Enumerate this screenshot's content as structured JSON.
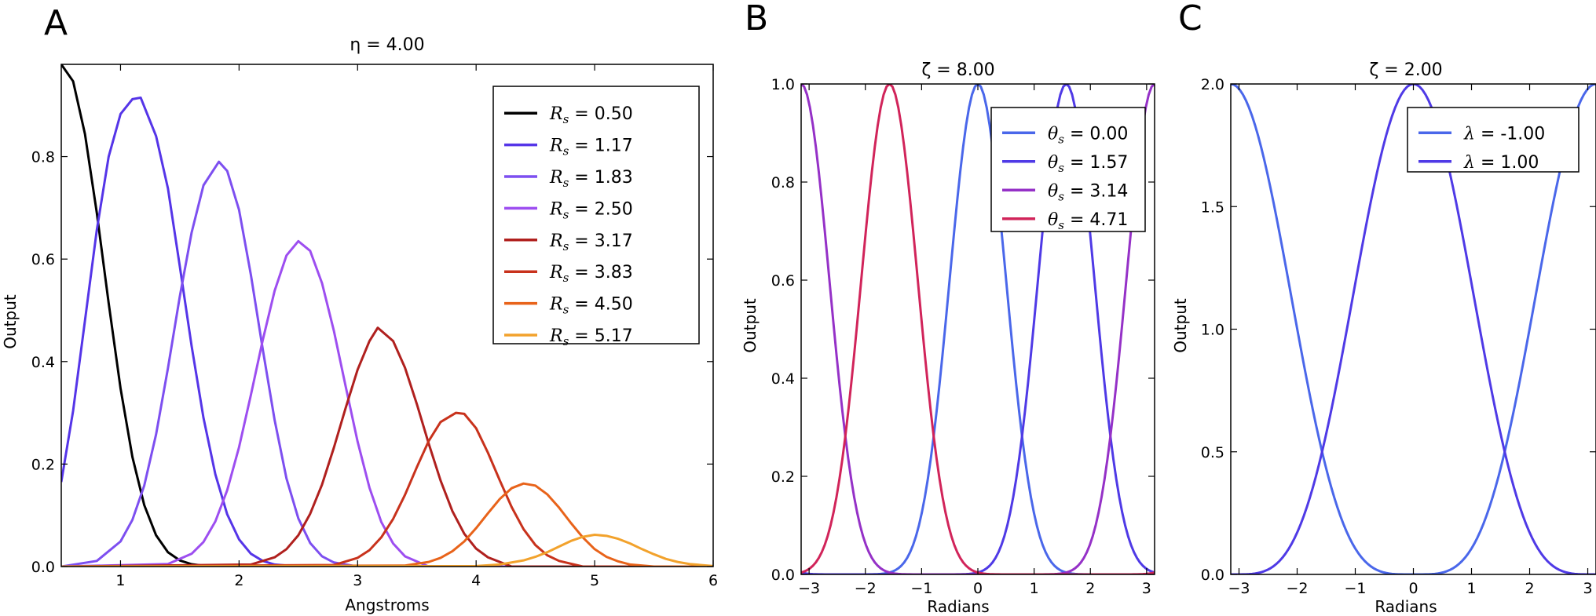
{
  "chart_data": [
    {
      "panel_label": "A",
      "type": "line",
      "title": "η = 4.00",
      "xlabel": "Angstroms",
      "ylabel": "Output",
      "xlim": [
        0.5,
        6.0
      ],
      "ylim": [
        0.0,
        0.98
      ],
      "x_ticks": [
        "1",
        "2",
        "3",
        "4",
        "5",
        "6"
      ],
      "y_ticks": [
        "0.0",
        "0.2",
        "0.4",
        "0.6",
        "0.8"
      ],
      "legend_position": "upper-right",
      "series": [
        {
          "name": "R_s = 0.50",
          "legend_symbol": "R",
          "legend_sub": "s",
          "legend_value": "= 0.50",
          "color": "#000000",
          "x": [
            0.5,
            0.6,
            0.7,
            0.8,
            0.9,
            1.0,
            1.1,
            1.2,
            1.3,
            1.4,
            1.5,
            1.6,
            1.7,
            1.8,
            2.0,
            6.0
          ],
          "y": [
            0.98,
            0.947,
            0.844,
            0.69,
            0.514,
            0.348,
            0.214,
            0.12,
            0.061,
            0.028,
            0.012,
            0.0046,
            0.0016,
            0.0005,
            0.0,
            0.0
          ]
        },
        {
          "name": "R_s = 1.17",
          "legend_symbol": "R",
          "legend_sub": "s",
          "legend_value": "= 1.17",
          "color": "#5535e8",
          "x": [
            0.5,
            0.6,
            0.7,
            0.8,
            0.9,
            1.0,
            1.1,
            1.17,
            1.3,
            1.4,
            1.5,
            1.6,
            1.7,
            1.8,
            1.9,
            2.0,
            2.1,
            2.2,
            2.3,
            2.5,
            6.0
          ],
          "y": [
            0.165,
            0.304,
            0.48,
            0.657,
            0.8,
            0.883,
            0.912,
            0.915,
            0.84,
            0.738,
            0.586,
            0.43,
            0.29,
            0.18,
            0.102,
            0.053,
            0.025,
            0.011,
            0.004,
            0.0,
            0.0
          ]
        },
        {
          "name": "R_s = 1.83",
          "legend_symbol": "R",
          "legend_sub": "s",
          "legend_value": "= 1.83",
          "color": "#7d4ff0",
          "x": [
            0.5,
            0.8,
            1.0,
            1.1,
            1.2,
            1.3,
            1.4,
            1.5,
            1.6,
            1.7,
            1.83,
            1.9,
            2.0,
            2.1,
            2.2,
            2.3,
            2.4,
            2.5,
            2.6,
            2.7,
            2.8,
            3.0,
            6.0
          ],
          "y": [
            0.0,
            0.011,
            0.049,
            0.091,
            0.158,
            0.258,
            0.387,
            0.527,
            0.652,
            0.744,
            0.79,
            0.772,
            0.696,
            0.569,
            0.424,
            0.286,
            0.172,
            0.094,
            0.046,
            0.02,
            0.008,
            0.0,
            0.0
          ]
        },
        {
          "name": "R_s = 2.50",
          "legend_symbol": "R",
          "legend_sub": "s",
          "legend_value": "= 2.50",
          "color": "#9d4ef0",
          "x": [
            0.5,
            1.4,
            1.6,
            1.7,
            1.8,
            1.9,
            2.0,
            2.1,
            2.2,
            2.3,
            2.4,
            2.5,
            2.6,
            2.7,
            2.8,
            2.9,
            3.0,
            3.1,
            3.2,
            3.3,
            3.4,
            3.6,
            6.0
          ],
          "y": [
            0.0,
            0.005,
            0.025,
            0.048,
            0.088,
            0.149,
            0.233,
            0.335,
            0.442,
            0.538,
            0.607,
            0.635,
            0.616,
            0.553,
            0.46,
            0.351,
            0.244,
            0.154,
            0.087,
            0.045,
            0.02,
            0.0,
            0.0
          ]
        },
        {
          "name": "R_s = 3.17",
          "legend_symbol": "R",
          "legend_sub": "s",
          "legend_value": "= 3.17",
          "color": "#b0201e",
          "x": [
            0.5,
            2.1,
            2.3,
            2.4,
            2.5,
            2.6,
            2.7,
            2.8,
            2.9,
            3.0,
            3.1,
            3.17,
            3.3,
            3.4,
            3.5,
            3.6,
            3.7,
            3.8,
            3.9,
            4.0,
            4.1,
            4.3,
            6.0
          ],
          "y": [
            0.0,
            0.004,
            0.018,
            0.034,
            0.061,
            0.103,
            0.16,
            0.232,
            0.31,
            0.384,
            0.44,
            0.466,
            0.44,
            0.388,
            0.317,
            0.24,
            0.168,
            0.108,
            0.064,
            0.035,
            0.018,
            0.0,
            0.0
          ]
        },
        {
          "name": "R_s = 3.83",
          "legend_symbol": "R",
          "legend_sub": "s",
          "legend_value": "= 3.83",
          "color": "#c8321c",
          "x": [
            0.5,
            2.8,
            3.0,
            3.1,
            3.2,
            3.3,
            3.4,
            3.5,
            3.6,
            3.7,
            3.83,
            3.9,
            4.0,
            4.1,
            4.2,
            4.3,
            4.4,
            4.5,
            4.6,
            4.7,
            4.9,
            6.0
          ],
          "y": [
            0.0,
            0.003,
            0.017,
            0.032,
            0.057,
            0.093,
            0.14,
            0.194,
            0.245,
            0.282,
            0.3,
            0.298,
            0.27,
            0.222,
            0.168,
            0.116,
            0.073,
            0.042,
            0.022,
            0.011,
            0.0,
            0.0
          ]
        },
        {
          "name": "R_s = 4.50",
          "legend_symbol": "R",
          "legend_sub": "s",
          "legend_value": "= 4.50",
          "color": "#e8631a",
          "x": [
            0.5,
            3.4,
            3.6,
            3.7,
            3.8,
            3.9,
            4.0,
            4.1,
            4.2,
            4.3,
            4.4,
            4.5,
            4.6,
            4.7,
            4.8,
            4.9,
            5.0,
            5.1,
            5.2,
            5.3,
            5.5,
            6.0
          ],
          "y": [
            0.0,
            0.002,
            0.009,
            0.017,
            0.03,
            0.049,
            0.075,
            0.104,
            0.132,
            0.153,
            0.162,
            0.158,
            0.141,
            0.115,
            0.085,
            0.057,
            0.034,
            0.019,
            0.01,
            0.004,
            0.0,
            0.0
          ]
        },
        {
          "name": "R_s = 5.17",
          "legend_symbol": "R",
          "legend_sub": "s",
          "legend_value": "= 5.17",
          "color": "#f2a22c",
          "x": [
            0.5,
            4.0,
            4.2,
            4.4,
            4.5,
            4.6,
            4.7,
            4.8,
            4.9,
            5.0,
            5.1,
            5.2,
            5.3,
            5.4,
            5.5,
            5.6,
            5.7,
            5.8,
            6.0
          ],
          "y": [
            0.0,
            0.001,
            0.004,
            0.012,
            0.019,
            0.028,
            0.039,
            0.05,
            0.058,
            0.062,
            0.06,
            0.054,
            0.045,
            0.034,
            0.024,
            0.015,
            0.009,
            0.005,
            0.001
          ]
        }
      ]
    },
    {
      "panel_label": "B",
      "type": "line",
      "title": "ζ = 8.00",
      "xlabel": "Radians",
      "ylabel": "Output",
      "xlim": [
        -3.1416,
        3.1416
      ],
      "ylim": [
        0.0,
        1.0
      ],
      "x_ticks": [
        "−3",
        "−2",
        "−1",
        "0",
        "1",
        "2",
        "3"
      ],
      "y_ticks": [
        "0.0",
        "0.2",
        "0.4",
        "0.6",
        "0.8",
        "1.0"
      ],
      "legend_position": "upper-right",
      "series": [
        {
          "name": "θ_s = 0.00",
          "legend_symbol": "θ",
          "legend_sub": "s",
          "legend_value": "= 0.00",
          "color": "#4a67ea",
          "theta_s": 0.0,
          "zeta": 8,
          "samples": 121
        },
        {
          "name": "θ_s = 1.57",
          "legend_symbol": "θ",
          "legend_sub": "s",
          "legend_value": "= 1.57",
          "color": "#4f3ae6",
          "theta_s": 1.5708,
          "zeta": 8,
          "samples": 121
        },
        {
          "name": "θ_s = 3.14",
          "legend_symbol": "θ",
          "legend_sub": "s",
          "legend_value": "= 3.14",
          "color": "#9531c7",
          "theta_s": 3.1416,
          "zeta": 8,
          "samples": 121
        },
        {
          "name": "θ_s = 4.71",
          "legend_symbol": "θ",
          "legend_sub": "s",
          "legend_value": "= 4.71",
          "color": "#d1245a",
          "theta_s": 4.7124,
          "zeta": 8,
          "samples": 121
        }
      ]
    },
    {
      "panel_label": "C",
      "type": "line",
      "title": "ζ = 2.00",
      "xlabel": "Radians",
      "ylabel": "Output",
      "xlim": [
        -3.1416,
        3.1416
      ],
      "ylim": [
        0.0,
        2.0
      ],
      "x_ticks": [
        "−3",
        "−2",
        "−1",
        "0",
        "1",
        "2",
        "3"
      ],
      "y_ticks": [
        "0.0",
        "0.5",
        "1.0",
        "1.5",
        "2.0"
      ],
      "legend_position": "upper-right",
      "series": [
        {
          "name": "λ = -1.00",
          "legend_symbol": "λ",
          "legend_sub": "",
          "legend_value": "= -1.00",
          "color": "#4a67ea",
          "lambda": -1,
          "zeta": 2,
          "samples": 121
        },
        {
          "name": "λ = 1.00",
          "legend_symbol": "λ",
          "legend_sub": "",
          "legend_value": "= 1.00",
          "color": "#4f3ae6",
          "lambda": 1,
          "zeta": 2,
          "samples": 121
        }
      ]
    }
  ]
}
